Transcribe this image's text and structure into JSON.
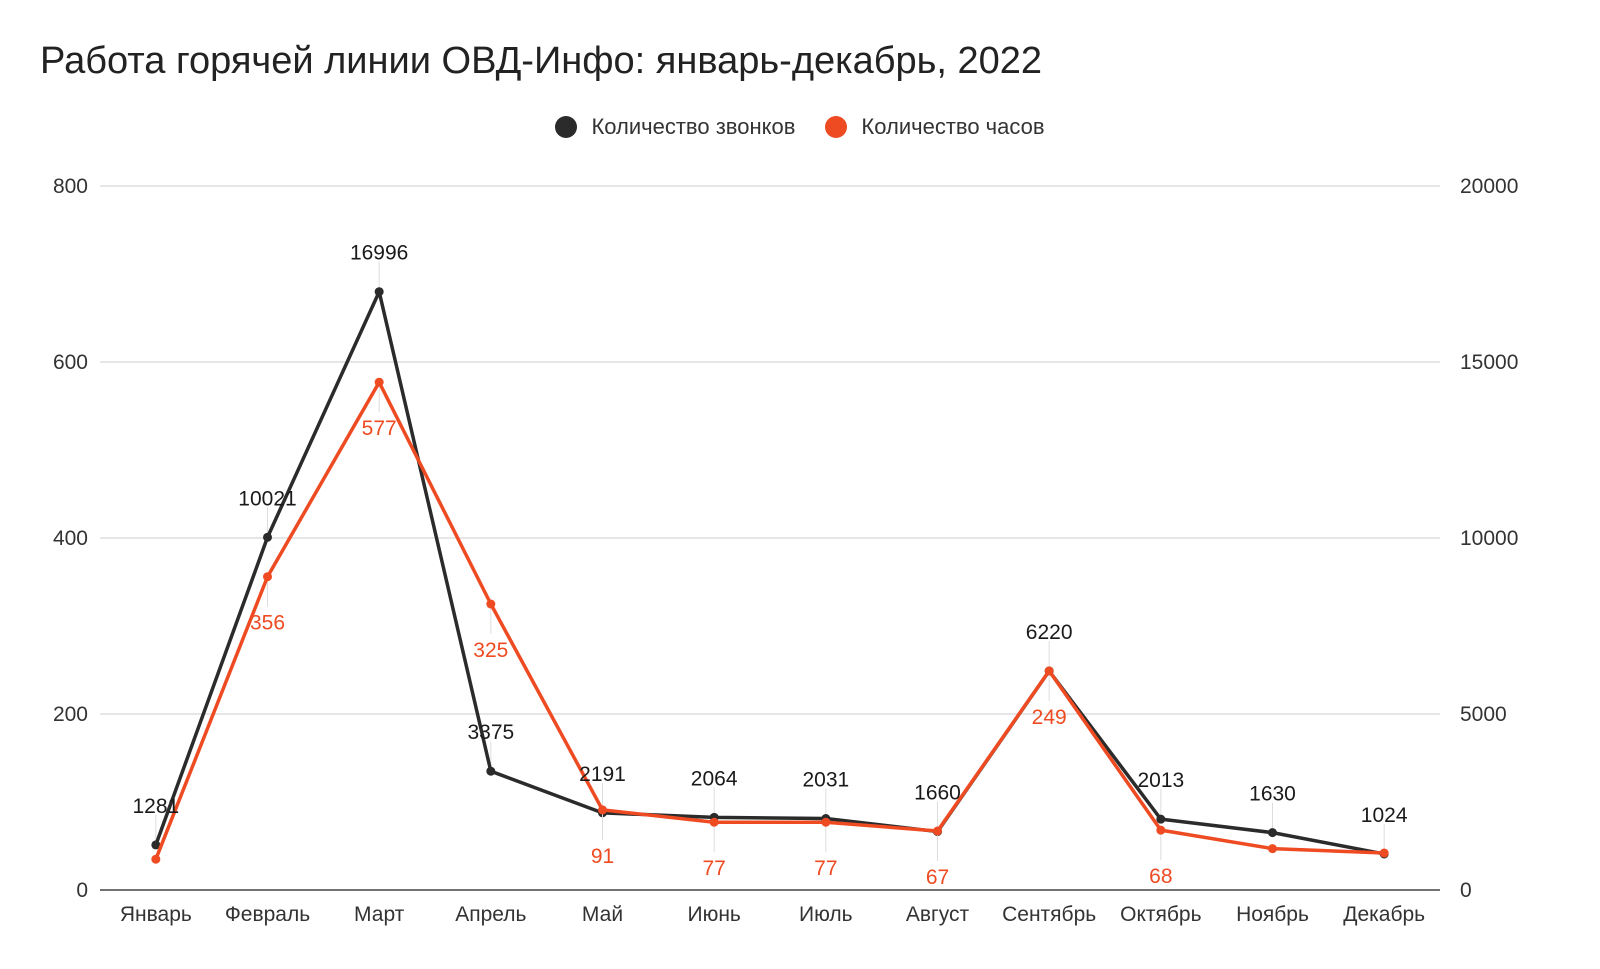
{
  "chart_data": {
    "type": "line",
    "title": "Работа горячей линии ОВД-Инфо: январь-декабрь, 2022",
    "categories": [
      "Январь",
      "Февраль",
      "Март",
      "Апрель",
      "Май",
      "Июнь",
      "Июль",
      "Август",
      "Сентябрь",
      "Октябрь",
      "Ноябрь",
      "Декабрь"
    ],
    "series": [
      {
        "name": "Количество звонков",
        "axis": "right",
        "color": "#2b2b2b",
        "values": [
          1281,
          10021,
          16996,
          3375,
          2191,
          2064,
          2031,
          1660,
          6220,
          2013,
          1630,
          1024
        ],
        "labels": [
          "1281",
          "10021",
          "16996",
          "3375",
          "2191",
          "2064",
          "2031",
          "1660",
          "6220",
          "2013",
          "1630",
          "1024"
        ]
      },
      {
        "name": "Количество часов",
        "axis": "left",
        "color": "#ee4b22",
        "values": [
          35,
          356,
          577,
          325,
          91,
          77,
          77,
          67,
          249,
          68,
          47,
          42
        ],
        "labels": [
          "",
          "356",
          "577",
          "325",
          "91",
          "77",
          "77",
          "67",
          "249",
          "68",
          "",
          ""
        ]
      }
    ],
    "y_left": {
      "range": [
        0,
        800
      ],
      "ticks": [
        "0",
        "200",
        "400",
        "600",
        "800"
      ]
    },
    "y_right": {
      "range": [
        0,
        20000
      ],
      "ticks": [
        "0",
        "5000",
        "10000",
        "15000",
        "20000"
      ]
    },
    "grid": true,
    "legend_position": "top-center"
  }
}
